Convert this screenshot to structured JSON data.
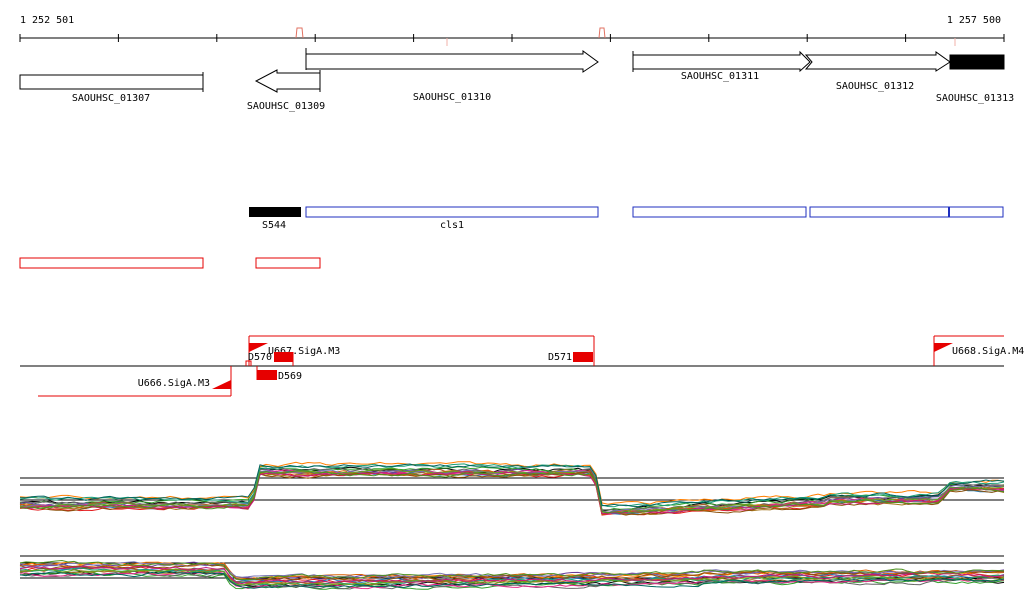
{
  "coordinates": {
    "start_label": "1 252 501",
    "end_label": "1 257 500",
    "start": 1252501,
    "end": 1257500
  },
  "genes": [
    {
      "id": "SAOUHSC_01307",
      "label": "SAOUHSC_01307",
      "start": 1252501,
      "end": 1253443,
      "strand": "none"
    },
    {
      "id": "SAOUHSC_01309",
      "label": "SAOUHSC_01309",
      "start": 1253678,
      "end": 1254000,
      "strand": "-"
    },
    {
      "id": "SAOUHSC_01310",
      "label": "SAOUHSC_01310",
      "start": 1254000,
      "end": 1255513,
      "strand": "+"
    },
    {
      "id": "SAOUHSC_01311",
      "label": "SAOUHSC_01311",
      "start": 1255688,
      "end": 1256560,
      "strand": "+"
    },
    {
      "id": "SAOUHSC_01312",
      "label": "SAOUHSC_01312",
      "start": 1256560,
      "end": 1257193,
      "strand": "+"
    },
    {
      "id": "SAOUHSC_01313",
      "label": "SAOUHSC_01313",
      "start": 1257193,
      "end": 1257500,
      "strand": "filled"
    }
  ],
  "annotations": [
    {
      "label": "S544",
      "start": 1253728,
      "end": 1253998,
      "style": "black"
    },
    {
      "label": "cls1",
      "start": 1254025,
      "end": 1255513,
      "style": "blue"
    },
    {
      "label": "",
      "start": 1255688,
      "end": 1256560,
      "style": "blue"
    },
    {
      "label": "",
      "start": 1256560,
      "end": 1257193,
      "style": "blue"
    },
    {
      "label": "",
      "start": 1257193,
      "end": 1257500,
      "style": "blue"
    }
  ],
  "red_boxes": [
    {
      "start": 1252501,
      "end": 1253443
    },
    {
      "start": 1253678,
      "end": 1254000
    }
  ],
  "promoters": [
    {
      "label": "U666.SigA.M3",
      "pos": 1253575,
      "strand": "-"
    },
    {
      "label": "U667.SigA.M3",
      "pos": 1253728,
      "strand": "+"
    },
    {
      "label": "U668.SigA.M4",
      "pos": 1257193,
      "strand": "+"
    }
  ],
  "terminators": [
    {
      "label": "D570",
      "pos": 1253700
    },
    {
      "label": "D569",
      "pos": 1253745
    },
    {
      "label": "D571",
      "pos": 1255475
    }
  ],
  "colors": {
    "gene": "#000000",
    "annotation": "#1f2fbf",
    "red": "#e60000",
    "axis": "#000000"
  }
}
